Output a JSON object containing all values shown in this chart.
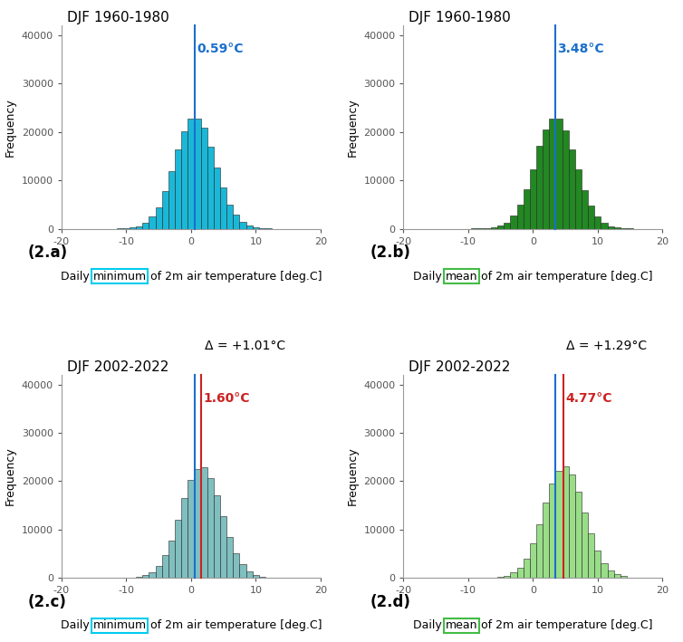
{
  "panels": [
    {
      "id": "2.a",
      "title": "DJF 1960-1980",
      "mean": 0.59,
      "mean_label": "0.59°C",
      "mean_line_color": "#1a6fcc",
      "hist_color": "#1ab8d8",
      "hist_edge_color": "#222222",
      "second_line": null,
      "second_line_color": null,
      "delta_text": null,
      "xlabel_prefix": "Daily ",
      "xlabel_keyword": "minimum",
      "xlabel_keyword_box_color": "#00ccee",
      "xlabel_suffix": " of 2m air temperature [deg.C]",
      "ylabel": "Frequency",
      "row": 0,
      "col": 0,
      "dist_mean": 0.59,
      "dist_std": 3.1,
      "n_samples": 180000
    },
    {
      "id": "2.b",
      "title": "DJF 1960-1980",
      "mean": 3.48,
      "mean_label": "3.48°C",
      "mean_line_color": "#1a6fcc",
      "hist_color": "#228822",
      "hist_edge_color": "#222222",
      "second_line": null,
      "second_line_color": null,
      "delta_text": null,
      "xlabel_prefix": "Daily ",
      "xlabel_keyword": "mean",
      "xlabel_keyword_box_color": "#44bb44",
      "xlabel_suffix": " of 2m air temperature [deg.C]",
      "ylabel": "Frequency",
      "row": 0,
      "col": 1,
      "dist_mean": 3.48,
      "dist_std": 3.1,
      "n_samples": 180000
    },
    {
      "id": "2.c",
      "title": "DJF 2002-2022",
      "mean": 1.6,
      "mean_label": "1.60°C",
      "mean_line_color": "#cc2222",
      "hist_color": "#80bfbf",
      "hist_edge_color": "#222222",
      "second_line": 0.59,
      "second_line_color": "#1a6fcc",
      "delta_text": "Δ = +1.01°C",
      "xlabel_prefix": "Daily ",
      "xlabel_keyword": "minimum",
      "xlabel_keyword_box_color": "#00ccee",
      "xlabel_suffix": " of 2m air temperature [deg.C]",
      "ylabel": "Frequency",
      "row": 1,
      "col": 0,
      "dist_mean": 1.6,
      "dist_std": 3.1,
      "n_samples": 180000
    },
    {
      "id": "2.d",
      "title": "DJF 2002-2022",
      "mean": 4.77,
      "mean_label": "4.77°C",
      "mean_line_color": "#cc2222",
      "hist_color": "#99dd88",
      "hist_edge_color": "#222222",
      "second_line": 3.48,
      "second_line_color": "#1a6fcc",
      "delta_text": "Δ = +1.29°C",
      "xlabel_prefix": "Daily ",
      "xlabel_keyword": "mean",
      "xlabel_keyword_box_color": "#44bb44",
      "xlabel_suffix": " of 2m air temperature [deg.C]",
      "ylabel": "Frequency",
      "row": 1,
      "col": 1,
      "dist_mean": 4.77,
      "dist_std": 3.1,
      "n_samples": 180000
    }
  ],
  "xlim": [
    -20,
    20
  ],
  "ylim": [
    0,
    42000
  ],
  "yticks": [
    0,
    10000,
    20000,
    30000,
    40000
  ],
  "xticks": [
    -20,
    -10,
    0,
    10,
    20
  ],
  "bin_width": 1.0,
  "background_color": "#ffffff",
  "figsize": [
    7.54,
    7.09
  ],
  "dpi": 100
}
